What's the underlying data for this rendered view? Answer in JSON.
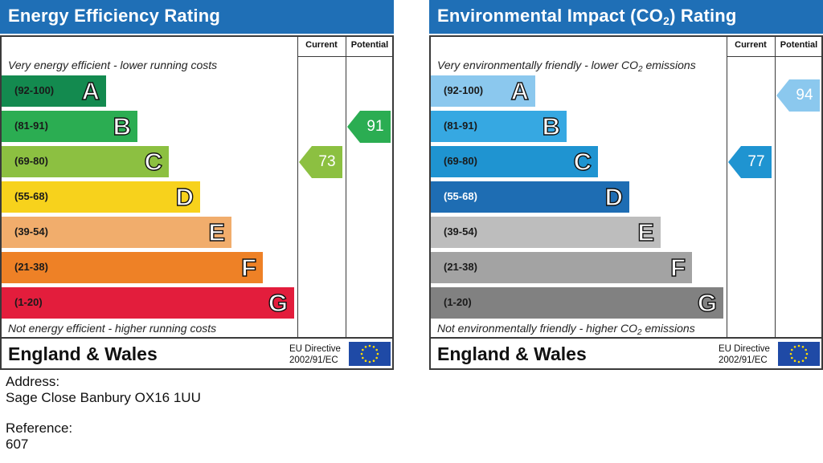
{
  "chart_data": [
    {
      "type": "bar",
      "title": "Energy Efficiency Rating",
      "column_headers": {
        "current": "Current",
        "potential": "Potential"
      },
      "caption_top": "Very energy efficient - lower running costs",
      "caption_bottom": "Not energy efficient - higher running costs",
      "bands": [
        {
          "range": "(92-100)",
          "letter": "A",
          "color": "#138a4f"
        },
        {
          "range": "(81-91)",
          "letter": "B",
          "color": "#2bad52"
        },
        {
          "range": "(69-80)",
          "letter": "C",
          "color": "#8cc041"
        },
        {
          "range": "(55-68)",
          "letter": "D",
          "color": "#f7d21c"
        },
        {
          "range": "(39-54)",
          "letter": "E",
          "color": "#f1ad6c"
        },
        {
          "range": "(21-38)",
          "letter": "F",
          "color": "#ee8126"
        },
        {
          "range": "(1-20)",
          "letter": "G",
          "color": "#e31d3c"
        }
      ],
      "current": {
        "value": 73,
        "band": "C",
        "color": "#8cc041"
      },
      "potential": {
        "value": 91,
        "band": "B",
        "color": "#2bad52"
      },
      "footer_label": "England & Wales",
      "directive": [
        "EU Directive",
        "2002/91/EC"
      ]
    },
    {
      "type": "bar",
      "title": "Environmental Impact (CO2) Rating",
      "column_headers": {
        "current": "Current",
        "potential": "Potential"
      },
      "caption_top": "Very environmentally friendly - lower CO2 emissions",
      "caption_bottom": "Not environmentally friendly - higher CO2 emissions",
      "bands": [
        {
          "range": "(92-100)",
          "letter": "A",
          "color": "#8bc8ee"
        },
        {
          "range": "(81-91)",
          "letter": "B",
          "color": "#36a8e2"
        },
        {
          "range": "(69-80)",
          "letter": "C",
          "color": "#1f94d1"
        },
        {
          "range": "(55-68)",
          "letter": "D",
          "color": "#1e6db3"
        },
        {
          "range": "(39-54)",
          "letter": "E",
          "color": "#bdbdbd"
        },
        {
          "range": "(21-38)",
          "letter": "F",
          "color": "#a3a3a3"
        },
        {
          "range": "(1-20)",
          "letter": "G",
          "color": "#818181"
        }
      ],
      "current": {
        "value": 77,
        "band": "C",
        "color": "#1f94d1"
      },
      "potential": {
        "value": 94,
        "band": "A",
        "color": "#8bc8ee"
      },
      "footer_label": "England & Wales",
      "directive": [
        "EU Directive",
        "2002/91/EC"
      ]
    }
  ],
  "address_label": "Address:",
  "address_value": "Sage Close Banbury OX16 1UU",
  "reference_label": "Reference:",
  "reference_value": "607",
  "eu_flag_icon": "eu-flag-icon"
}
